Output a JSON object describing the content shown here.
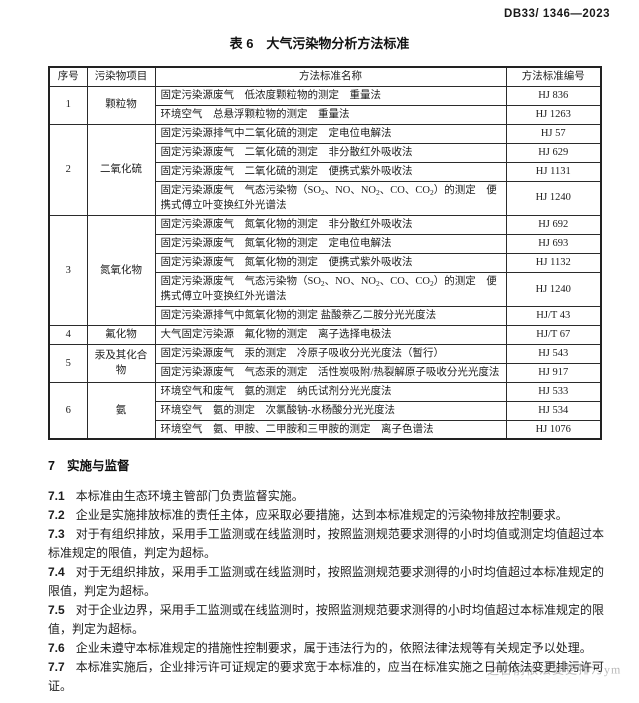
{
  "header": {
    "doc_number": "DB33/ 1346—2023"
  },
  "table": {
    "title": "表 6　大气污染物分析方法标准",
    "columns": [
      "序号",
      "污染物项目",
      "方法标准名称",
      "方法标准编号"
    ],
    "groups": [
      {
        "no": "1",
        "pollutant": "颗粒物",
        "methods": [
          {
            "name": "固定污染源废气　低浓度颗粒物的测定　重量法",
            "code": "HJ 836"
          },
          {
            "name": "环境空气　总悬浮颗粒物的测定　重量法",
            "code": "HJ 1263"
          }
        ]
      },
      {
        "no": "2",
        "pollutant": "二氧化硫",
        "methods": [
          {
            "name": "固定污染源排气中二氧化硫的测定　定电位电解法",
            "code": "HJ 57"
          },
          {
            "name": "固定污染源废气　二氧化硫的测定　非分散红外吸收法",
            "code": "HJ 629"
          },
          {
            "name": "固定污染源废气　二氧化硫的测定　便携式紫外吸收法",
            "code": "HJ 1131"
          },
          {
            "name": "固定污染源废气　气态污染物（SO₂、NO、NO₂、CO、CO₂）的测定　便携式傅立叶变换红外光谱法",
            "code": "HJ 1240"
          }
        ]
      },
      {
        "no": "3",
        "pollutant": "氮氧化物",
        "methods": [
          {
            "name": "固定污染源废气　氮氧化物的测定　非分散红外吸收法",
            "code": "HJ 692"
          },
          {
            "name": "固定污染源废气　氮氧化物的测定　定电位电解法",
            "code": "HJ 693"
          },
          {
            "name": "固定污染源废气　氮氧化物的测定　便携式紫外吸收法",
            "code": "HJ 1132"
          },
          {
            "name": "固定污染源废气　气态污染物（SO₂、NO、NO₂、CO、CO₂）的测定　便携式傅立叶变换红外光谱法",
            "code": "HJ 1240"
          },
          {
            "name": "固定污染源排气中氮氧化物的测定 盐酸萘乙二胺分光光度法",
            "code": "HJ/T 43"
          }
        ]
      },
      {
        "no": "4",
        "pollutant": "氟化物",
        "methods": [
          {
            "name": "大气固定污染源　氟化物的测定　离子选择电极法",
            "code": "HJ/T 67"
          }
        ]
      },
      {
        "no": "5",
        "pollutant": "汞及其化合物",
        "methods": [
          {
            "name": "固定污染源废气　汞的测定　冷原子吸收分光光度法（暂行）",
            "code": "HJ 543"
          },
          {
            "name": "固定污染源废气　气态汞的测定　活性炭吸附/热裂解原子吸收分光光度法",
            "code": "HJ 917"
          }
        ]
      },
      {
        "no": "6",
        "pollutant": "氨",
        "methods": [
          {
            "name": "环境空气和废气　氨的测定　纳氏试剂分光光度法",
            "code": "HJ 533"
          },
          {
            "name": "环境空气　氨的测定　次氯酸钠-水杨酸分光光度法",
            "code": "HJ 534"
          },
          {
            "name": "环境空气　氨、甲胺、二甲胺和三甲胺的测定　离子色谱法",
            "code": "HJ 1076"
          }
        ]
      }
    ]
  },
  "section": {
    "number": "7",
    "title": "实施与监督",
    "clauses": [
      {
        "num": "7.1",
        "text": "本标准由生态环境主管部门负责监督实施。"
      },
      {
        "num": "7.2",
        "text": "企业是实施排放标准的责任主体，应采取必要措施，达到本标准规定的污染物排放控制要求。"
      },
      {
        "num": "7.3",
        "text": "对于有组织排放，采用手工监测或在线监测时，按照监测规范要求测得的小时均值或测定均值超过本标准规定的限值，判定为超标。"
      },
      {
        "num": "7.4",
        "text": "对于无组织排放，采用手工监测或在线监测时，按照监测规范要求测得的小时均值超过本标准规定的限值，判定为超标。"
      },
      {
        "num": "7.5",
        "text": "对于企业边界，采用手工监测或在线监测时，按照监测规范要求测得的小时均值超过本标准规定的限值，判定为超标。"
      },
      {
        "num": "7.6",
        "text": "企业未遵守本标准规定的措施性控制要求，属于违法行为的，依照法律法规等有关规定予以处理。"
      },
      {
        "num": "7.7",
        "text": "本标准实施后，企业排污许可证规定的要求宽于本标准的，应当在标准实施之日前依法变更排污许可证。"
      }
    ]
  },
  "watermark": {
    "text": "之日前依法变更排污ym"
  }
}
